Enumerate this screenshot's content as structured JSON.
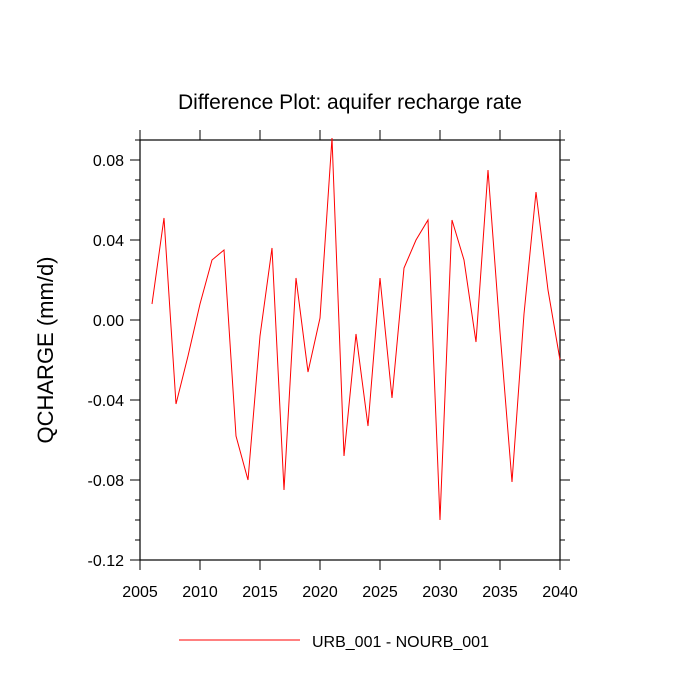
{
  "chart_data": {
    "type": "line",
    "title": "Difference Plot: aquifer recharge rate",
    "xlabel": "",
    "ylabel": "QCHARGE  (mm/d)",
    "xlim": [
      2005,
      2040
    ],
    "ylim": [
      -0.12,
      0.09
    ],
    "x_ticks": [
      2005,
      2010,
      2015,
      2020,
      2025,
      2030,
      2035,
      2040
    ],
    "x_tick_labels": [
      "2005",
      "2010",
      "2015",
      "2020",
      "2025",
      "2030",
      "2035",
      "2040"
    ],
    "y_ticks": [
      -0.12,
      -0.08,
      -0.04,
      0.0,
      0.04,
      0.08
    ],
    "y_tick_labels": [
      "-0.12",
      "-0.08",
      "-0.04",
      "0.00",
      "0.04",
      "0.08"
    ],
    "grid": false,
    "legend_position": "bottom-center",
    "series": [
      {
        "name": "URB_001 - NOURB_001",
        "color": "#ff0000",
        "x": [
          2006,
          2007,
          2008,
          2009,
          2010,
          2011,
          2012,
          2013,
          2014,
          2015,
          2016,
          2017,
          2018,
          2019,
          2020,
          2021,
          2022,
          2023,
          2024,
          2025,
          2026,
          2027,
          2028,
          2029,
          2030,
          2031,
          2032,
          2033,
          2034,
          2035,
          2036,
          2037,
          2038,
          2039,
          2040
        ],
        "y": [
          0.008,
          0.051,
          -0.042,
          -0.018,
          0.008,
          0.03,
          0.035,
          -0.058,
          -0.08,
          -0.008,
          0.036,
          -0.085,
          0.021,
          -0.026,
          0.001,
          0.091,
          -0.068,
          -0.007,
          -0.053,
          0.021,
          -0.039,
          0.026,
          0.04,
          0.05,
          -0.1,
          0.05,
          0.03,
          -0.011,
          0.075,
          -0.006,
          -0.081,
          0.003,
          0.064,
          0.015,
          -0.02
        ]
      }
    ]
  }
}
